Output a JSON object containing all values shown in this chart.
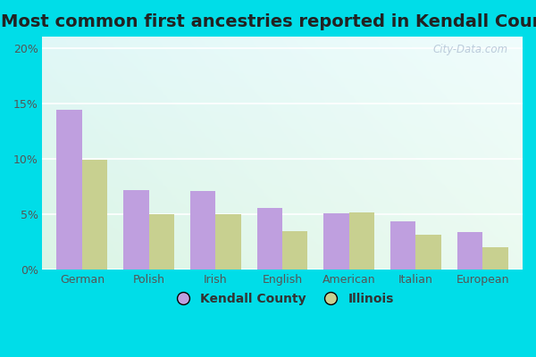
{
  "title": "Most common first ancestries reported in Kendall County",
  "categories": [
    "German",
    "Polish",
    "Irish",
    "English",
    "American",
    "Italian",
    "European"
  ],
  "kendall_values": [
    14.4,
    7.2,
    7.1,
    5.6,
    5.1,
    4.4,
    3.4
  ],
  "illinois_values": [
    9.9,
    5.0,
    5.0,
    3.5,
    5.2,
    3.2,
    2.0
  ],
  "kendall_color": "#bf9fdf",
  "illinois_color": "#c8d090",
  "bar_width": 0.38,
  "ylim_max": 21,
  "yticks": [
    0,
    5,
    10,
    15,
    20
  ],
  "ytick_labels": [
    "0%",
    "5%",
    "10%",
    "15%",
    "20%"
  ],
  "legend_labels": [
    "Kendall County",
    "Illinois"
  ],
  "watermark": "City-Data.com",
  "title_fontsize": 14,
  "tick_fontsize": 9,
  "legend_fontsize": 10,
  "outer_bg": "#00dde8",
  "grid_color": "#cccccc",
  "tick_color": "#555555"
}
